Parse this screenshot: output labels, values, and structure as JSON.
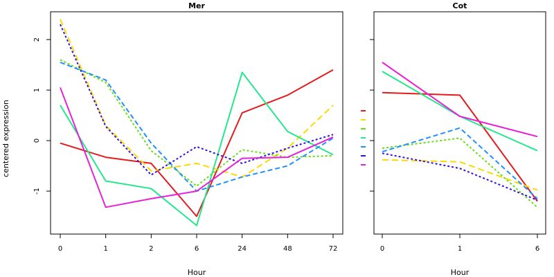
{
  "ylabel": "centered expression",
  "colors": {
    "red": "#e41a1c",
    "gold": "#ffd700",
    "lime": "#66dd11",
    "teal": "#22e88c",
    "blue": "#1e90ff",
    "purple": "#3311dd",
    "magenta": "#e820d8"
  },
  "chart_data": [
    {
      "type": "line",
      "title": "Mer",
      "xlabel": "Hour",
      "ylabel": "centered expression",
      "categories": [
        "0",
        "1",
        "2",
        "6",
        "24",
        "48",
        "72"
      ],
      "ylim": [
        -1.85,
        2.55
      ],
      "yticks": [
        -1,
        0,
        1,
        2
      ],
      "grid": false,
      "series": [
        {
          "color": "red",
          "dash": "solid",
          "values": [
            -0.05,
            -0.33,
            -0.45,
            -1.5,
            0.55,
            0.9,
            1.4
          ]
        },
        {
          "color": "gold",
          "dash": "long",
          "values": [
            2.4,
            0.3,
            -0.6,
            -0.45,
            -0.72,
            -0.15,
            0.7
          ]
        },
        {
          "color": "lime",
          "dash": "dot",
          "values": [
            1.6,
            1.15,
            -0.2,
            -0.9,
            -0.18,
            -0.33,
            -0.3
          ]
        },
        {
          "color": "teal",
          "dash": "solid",
          "values": [
            0.7,
            -0.8,
            -0.95,
            -1.68,
            1.35,
            0.18,
            -0.28
          ]
        },
        {
          "color": "blue",
          "dash": "dash",
          "values": [
            1.55,
            1.2,
            -0.05,
            -1.0,
            -0.72,
            -0.5,
            0.05
          ]
        },
        {
          "color": "purple",
          "dash": "dot",
          "values": [
            2.3,
            0.28,
            -0.68,
            -0.12,
            -0.45,
            -0.15,
            0.12
          ]
        },
        {
          "color": "magenta",
          "dash": "solid",
          "values": [
            1.05,
            -1.32,
            -1.15,
            -1.0,
            -0.35,
            -0.33,
            0.07
          ]
        }
      ]
    },
    {
      "type": "line",
      "title": "Cot",
      "xlabel": "Hour",
      "ylabel": "",
      "categories": [
        "0",
        "1",
        "6"
      ],
      "ylim": [
        -1.85,
        2.55
      ],
      "yticks": [
        -1,
        0,
        1,
        2
      ],
      "grid": false,
      "series": [
        {
          "color": "red",
          "dash": "solid",
          "values": [
            0.95,
            0.9,
            -1.2
          ]
        },
        {
          "color": "gold",
          "dash": "long",
          "values": [
            -0.38,
            -0.42,
            -0.98
          ]
        },
        {
          "color": "lime",
          "dash": "dot",
          "values": [
            -0.15,
            0.05,
            -1.32
          ]
        },
        {
          "color": "teal",
          "dash": "solid",
          "values": [
            1.37,
            0.48,
            -0.2
          ]
        },
        {
          "color": "blue",
          "dash": "dash",
          "values": [
            -0.22,
            0.25,
            -1.15
          ]
        },
        {
          "color": "purple",
          "dash": "dot",
          "values": [
            -0.25,
            -0.55,
            -1.18
          ]
        },
        {
          "color": "magenta",
          "dash": "solid",
          "values": [
            1.55,
            0.48,
            0.08
          ]
        }
      ]
    }
  ],
  "legend": {
    "placement": "between panels",
    "entries": [
      "red",
      "gold",
      "lime",
      "teal",
      "blue",
      "purple",
      "magenta"
    ]
  }
}
